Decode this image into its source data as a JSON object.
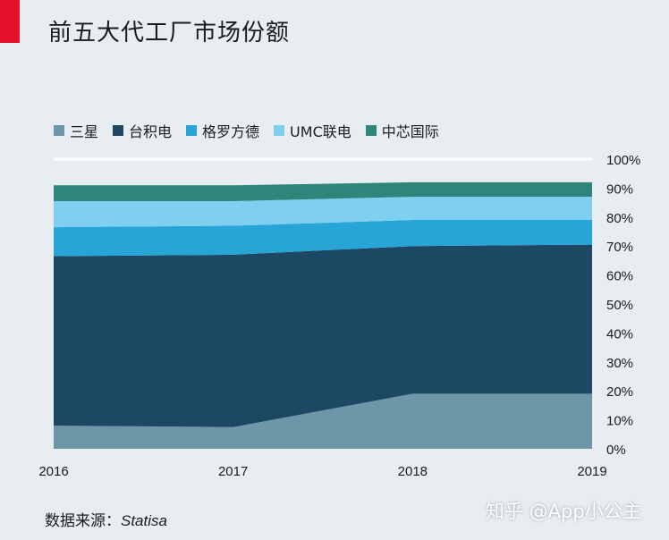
{
  "header": {
    "title": "前五大代工厂市场份额",
    "accent_color": "#e3132b"
  },
  "legend": [
    {
      "label": "三星",
      "color": "#6b97a9"
    },
    {
      "label": "台积电",
      "color": "#1c4863"
    },
    {
      "label": "格罗方德",
      "color": "#27a5d6"
    },
    {
      "label": "UMC联电",
      "color": "#7fcff0"
    },
    {
      "label": "中芯国际",
      "color": "#2e857a"
    }
  ],
  "footer": {
    "source_label": "数据来源：",
    "source_name": "Statisa",
    "watermark": "知乎 @App小公主"
  },
  "chart_data": {
    "type": "area",
    "stacked": true,
    "x": [
      "2016",
      "2017",
      "2018",
      "2019"
    ],
    "y_ticks": [
      "100%",
      "90%",
      "80%",
      "70%",
      "60%",
      "50%",
      "40%",
      "30%",
      "20%",
      "10%",
      "0%"
    ],
    "ylim": [
      0,
      100
    ],
    "y_axis_side": "right",
    "gridlines": false,
    "legend_position": "top",
    "series": [
      {
        "name": "三星",
        "color": "#6b97a9",
        "values": [
          8,
          7.5,
          19,
          19
        ]
      },
      {
        "name": "台积电",
        "color": "#1c4863",
        "values": [
          58.5,
          59.5,
          51,
          51.5
        ]
      },
      {
        "name": "格罗方德",
        "color": "#27a5d6",
        "values": [
          10,
          10,
          9,
          8.5
        ]
      },
      {
        "name": "UMC联电",
        "color": "#7fcff0",
        "values": [
          9,
          8.5,
          8,
          8
        ]
      },
      {
        "name": "中芯国际",
        "color": "#2e857a",
        "values": [
          5.5,
          5.5,
          5,
          5
        ]
      }
    ]
  }
}
